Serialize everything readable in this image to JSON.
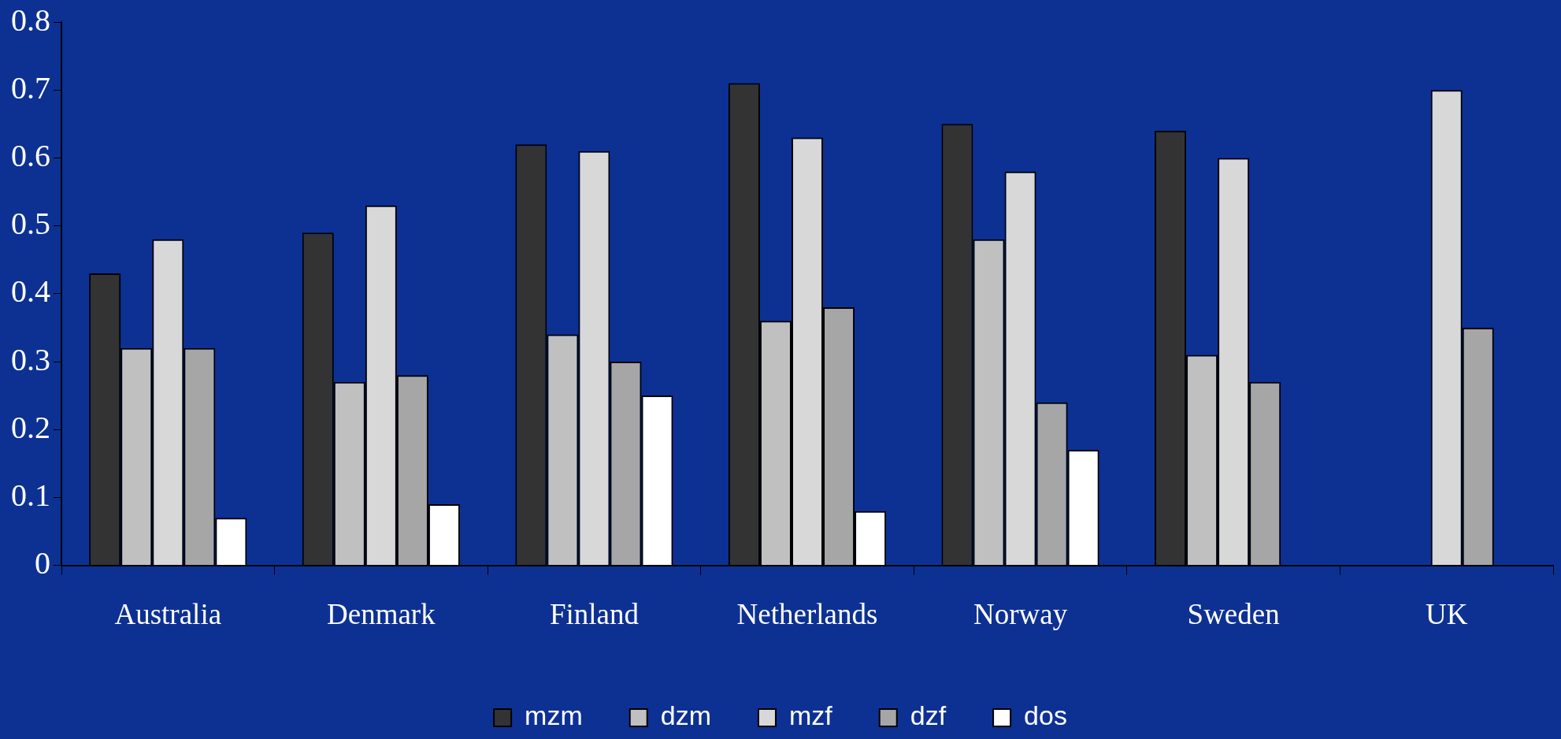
{
  "chart_data": {
    "type": "bar",
    "categories": [
      "Australia",
      "Denmark",
      "Finland",
      "Netherlands",
      "Norway",
      "Sweden",
      "UK"
    ],
    "series": [
      {
        "name": "mzm",
        "color": "#333333",
        "values": [
          0.43,
          0.49,
          0.62,
          0.71,
          0.65,
          0.64,
          null
        ]
      },
      {
        "name": "dzm",
        "color": "#c0c0c0",
        "values": [
          0.32,
          0.27,
          0.34,
          0.36,
          0.48,
          0.31,
          null
        ]
      },
      {
        "name": "mzf",
        "color": "#d8d8d8",
        "values": [
          0.48,
          0.53,
          0.61,
          0.63,
          0.58,
          0.6,
          0.7
        ]
      },
      {
        "name": "dzf",
        "color": "#a6a6a6",
        "values": [
          0.32,
          0.28,
          0.3,
          0.38,
          0.24,
          0.27,
          0.35
        ]
      },
      {
        "name": "dos",
        "color": "#ffffff",
        "values": [
          0.07,
          0.09,
          0.25,
          0.08,
          0.17,
          null,
          null
        ]
      }
    ],
    "ylim": [
      0,
      0.8
    ],
    "yticks": [
      0,
      0.1,
      0.2,
      0.3,
      0.4,
      0.5,
      0.6,
      0.7,
      0.8
    ],
    "grid": false,
    "legend": "bottom"
  }
}
